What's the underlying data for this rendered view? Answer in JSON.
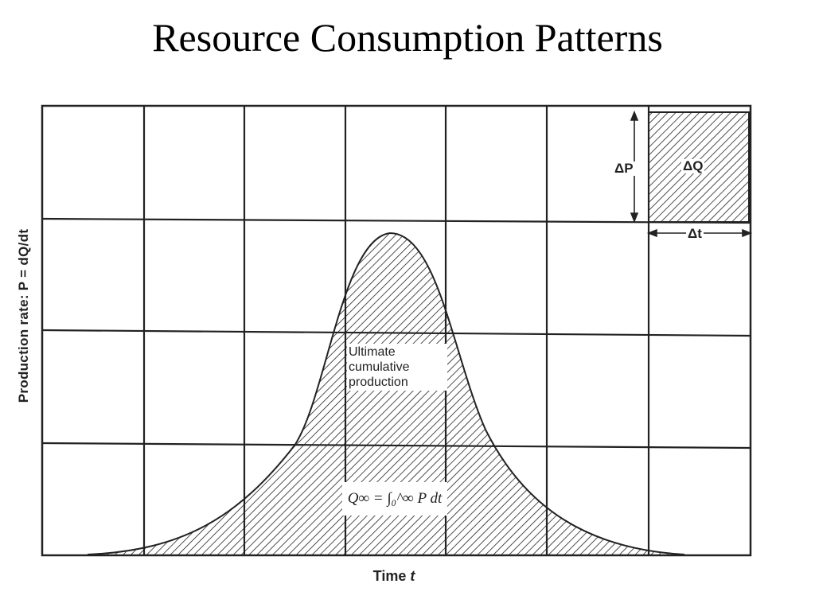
{
  "title": "Resource Consumption Patterns",
  "axes": {
    "y_label": "Production rate: P = dQ/dt",
    "x_label_text": "Time ",
    "x_label_var": "t"
  },
  "area_label": {
    "line1": "Ultimate",
    "line2": "cumulative",
    "line3": "production"
  },
  "formula": "Q∞ = ∫₀^∞ P dt",
  "legend": {
    "delta_p": "ΔP",
    "delta_q": "ΔQ",
    "delta_t": "Δt"
  },
  "colors": {
    "ink": "#222222",
    "background": "#ffffff"
  }
}
